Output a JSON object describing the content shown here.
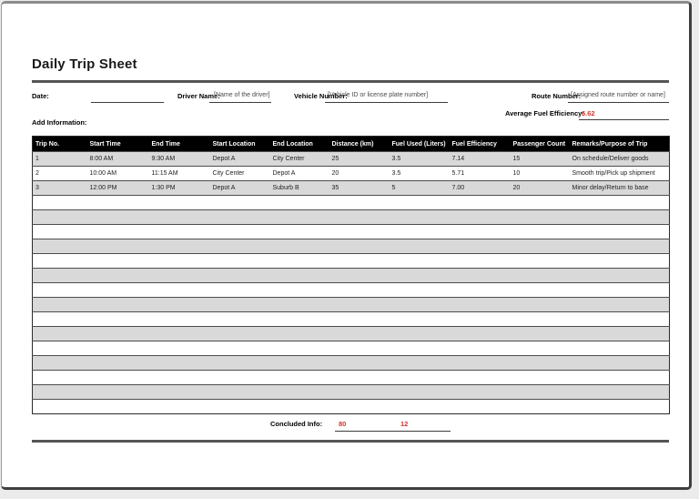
{
  "page": {
    "title": "Daily Trip Sheet",
    "colors": {
      "accent_red": "#d0342a",
      "table_header_bg": "#000000",
      "row_alt_gray": "#d9d9d9",
      "rule_gray": "#555555"
    }
  },
  "form": {
    "date_label": "Date:",
    "driver_label": "Driver Name:",
    "driver_placeholder": "[Name of the driver]",
    "vehicle_label": "Vehicle Number:",
    "vehicle_placeholder": "[Vehicle ID or license plate number]",
    "route_label": "Route Number:",
    "route_placeholder": "[Assigned route number or name]",
    "avg_fuel_label": "Average Fuel Efficiency:",
    "avg_fuel_value": "6.62",
    "add_info_label": "Add Information:"
  },
  "table": {
    "headers": [
      "Trip No.",
      "Start Time",
      "End Time",
      "Start Location",
      "End Location",
      "Distance (km)",
      "Fuel Used (Liters)",
      "Fuel Efficiency",
      "Passenger Count",
      "Remarks/Purpose of Trip"
    ],
    "rows": [
      [
        "1",
        "8:00 AM",
        "9:30 AM",
        "Depot A",
        "City Center",
        "25",
        "3.5",
        "7.14",
        "15",
        "On schedule/Deliver goods"
      ],
      [
        "2",
        "10:00 AM",
        "11:15 AM",
        "City Center",
        "Depot A",
        "20",
        "3.5",
        "5.71",
        "10",
        "Smooth trip/Pick up shipment"
      ],
      [
        "3",
        "12:00 PM",
        "1:30 PM",
        "Depot A",
        "Suburb B",
        "35",
        "5",
        "7.00",
        "20",
        "Minor delay/Return to base"
      ]
    ],
    "empty_row_count": 15,
    "columns_count": 10
  },
  "footer": {
    "concluded_label": "Concluded Info:",
    "value1": "80",
    "value2": "12"
  }
}
